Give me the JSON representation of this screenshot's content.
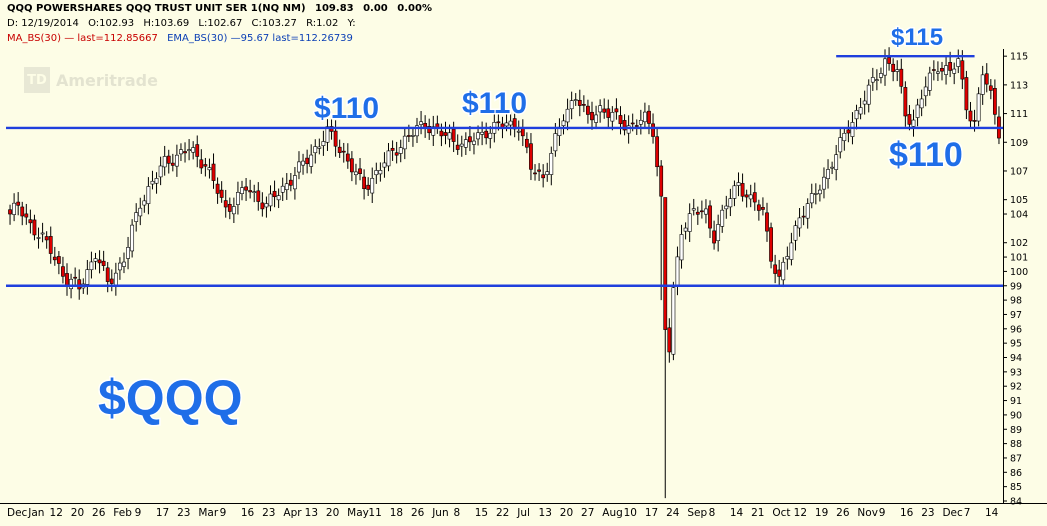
{
  "header": {
    "title": "QQQ POWERSHARES QQQ TRUST UNIT SER 1(NQ NM)",
    "last": "109.83",
    "change": "0.00",
    "change_pct": "0.00%",
    "date": "D: 12/19/2014",
    "open": "O:102.93",
    "high": "H:103.69",
    "low": "L:102.67",
    "close": "C:103.27",
    "rvol": "R:1.02",
    "y": "Y:",
    "ma_label": "MA_BS(30) — last=112.85667",
    "ema_label": "EMA_BS(30) —95.67 last=112.26739"
  },
  "watermark": {
    "mark": "TD",
    "text": "Ameritrade"
  },
  "colors": {
    "up": "#ffffff",
    "down": "#dd0000",
    "wick": "#000000",
    "line": "#1f3fdd",
    "text_blue": "#1f6ee8",
    "bg": "#fdfde6"
  },
  "annotations": [
    {
      "text": "$110"
    },
    {
      "text": "$110"
    },
    {
      "text": "$115"
    },
    {
      "text": "$110"
    },
    {
      "text": "$QQQ"
    }
  ],
  "chart_data": {
    "type": "candlestick",
    "title": "",
    "ylim": [
      84,
      115.5
    ],
    "yticks": [
      84,
      85,
      86,
      87,
      88,
      89,
      90,
      91,
      92,
      93,
      94,
      95,
      96,
      97,
      98,
      99,
      100,
      101,
      102,
      104,
      105,
      107,
      109,
      111,
      113,
      115
    ],
    "xticks": [
      "Dec",
      "Jan",
      "12",
      "20",
      "26",
      "Feb",
      "9",
      "17",
      "23",
      "Mar",
      "9",
      "16",
      "23",
      "Apr",
      "13",
      "20",
      "May",
      "11",
      "18",
      "26",
      "Jun",
      "8",
      "15",
      "22",
      "Jul",
      "13",
      "20",
      "27",
      "Aug",
      "10",
      "17",
      "24",
      "Sep",
      "8",
      "14",
      "21",
      "Oct",
      "12",
      "19",
      "26",
      "Nov",
      "9",
      "16",
      "23",
      "Dec",
      "7",
      "14"
    ],
    "horizontal_lines": [
      {
        "value": 110,
        "from_index": 0,
        "to_index": 999
      },
      {
        "value": 99,
        "from_index": 0,
        "to_index": 999
      },
      {
        "value": 115,
        "from_index": 203,
        "to_index": 237
      }
    ],
    "keypoints": [
      [
        0,
        104
      ],
      [
        2,
        104.5
      ],
      [
        5,
        103.3
      ],
      [
        10,
        101.5
      ],
      [
        14,
        99.3
      ],
      [
        17,
        98.9
      ],
      [
        21,
        101.2
      ],
      [
        24,
        99.2
      ],
      [
        28,
        100.8
      ],
      [
        32,
        104.8
      ],
      [
        38,
        107.6
      ],
      [
        44,
        108.5
      ],
      [
        48,
        107.5
      ],
      [
        53,
        104.3
      ],
      [
        58,
        105.8
      ],
      [
        63,
        104.6
      ],
      [
        68,
        106.1
      ],
      [
        73,
        107.8
      ],
      [
        78,
        109.7
      ],
      [
        82,
        108.2
      ],
      [
        87,
        105.8
      ],
      [
        92,
        107.6
      ],
      [
        97,
        109.2
      ],
      [
        102,
        110.3
      ],
      [
        107,
        109.4
      ],
      [
        112,
        108.8
      ],
      [
        117,
        109.8
      ],
      [
        122,
        110.3
      ],
      [
        125,
        110.2
      ],
      [
        128,
        107.2
      ],
      [
        131,
        106.6
      ],
      [
        133,
        108.2
      ],
      [
        136,
        110.8
      ],
      [
        139,
        112.3
      ],
      [
        142,
        110.6
      ],
      [
        145,
        111.4
      ],
      [
        148,
        110.8
      ],
      [
        152,
        110.1
      ],
      [
        156,
        110.6
      ],
      [
        158,
        109.9
      ],
      [
        160,
        105.0
      ],
      [
        161,
        96.0
      ],
      [
        162,
        94.5
      ],
      [
        163,
        98.5
      ],
      [
        165,
        103.0
      ],
      [
        168,
        104.2
      ],
      [
        171,
        104.0
      ],
      [
        173,
        102.5
      ],
      [
        176,
        104.6
      ],
      [
        179,
        106.2
      ],
      [
        182,
        104.9
      ],
      [
        185,
        104.2
      ],
      [
        187,
        101.1
      ],
      [
        189,
        99.3
      ],
      [
        191,
        101.2
      ],
      [
        194,
        103.9
      ],
      [
        197,
        104.9
      ],
      [
        200,
        106.5
      ],
      [
        203,
        108.2
      ],
      [
        206,
        110.0
      ],
      [
        209,
        111.6
      ],
      [
        212,
        113.1
      ],
      [
        215,
        114.7
      ],
      [
        218,
        113.9
      ],
      [
        220,
        110.9
      ],
      [
        222,
        110.6
      ],
      [
        225,
        112.9
      ],
      [
        228,
        114.4
      ],
      [
        231,
        113.9
      ],
      [
        233,
        114.6
      ],
      [
        235,
        111.6
      ],
      [
        237,
        110.3
      ],
      [
        239,
        113.8
      ],
      [
        241,
        112.3
      ],
      [
        243,
        109.83
      ]
    ]
  }
}
